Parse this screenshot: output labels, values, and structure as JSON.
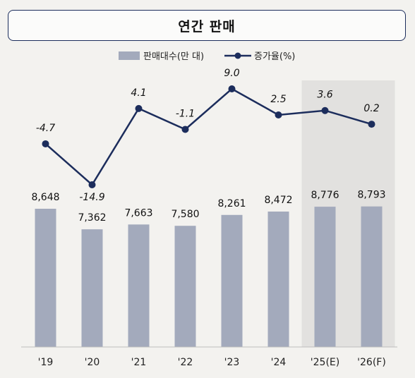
{
  "header": {
    "title": "연간 판매"
  },
  "chart_data": {
    "type": "bar+line",
    "categories": [
      "'19",
      "'20",
      "'21",
      "'22",
      "'23",
      "'24",
      "'25(E)",
      "'26(F)"
    ],
    "series": [
      {
        "name": "판매대수(만 대)",
        "type": "bar",
        "values": [
          8648,
          7362,
          7663,
          7580,
          8261,
          8472,
          8776,
          8793
        ],
        "labels": [
          "8,648",
          "7,362",
          "7,663",
          "7,580",
          "8,261",
          "8,472",
          "8,776",
          "8,793"
        ]
      },
      {
        "name": "증가율(%)",
        "type": "line",
        "values": [
          -4.7,
          -14.9,
          4.1,
          -1.1,
          9.0,
          2.5,
          3.6,
          0.2
        ],
        "labels": [
          "-4.7",
          "-14.9",
          "4.1",
          "-1.1",
          "9.0",
          "2.5",
          "3.6",
          "0.2"
        ]
      }
    ],
    "shaded_categories": [
      "'25(E)",
      "'26(F)"
    ],
    "legend_position": "top-center",
    "colors": {
      "bar": "#a3aabc",
      "line": "#1c2d5c",
      "shade": "#e2e1df",
      "axis": "#bdbdbd"
    }
  }
}
